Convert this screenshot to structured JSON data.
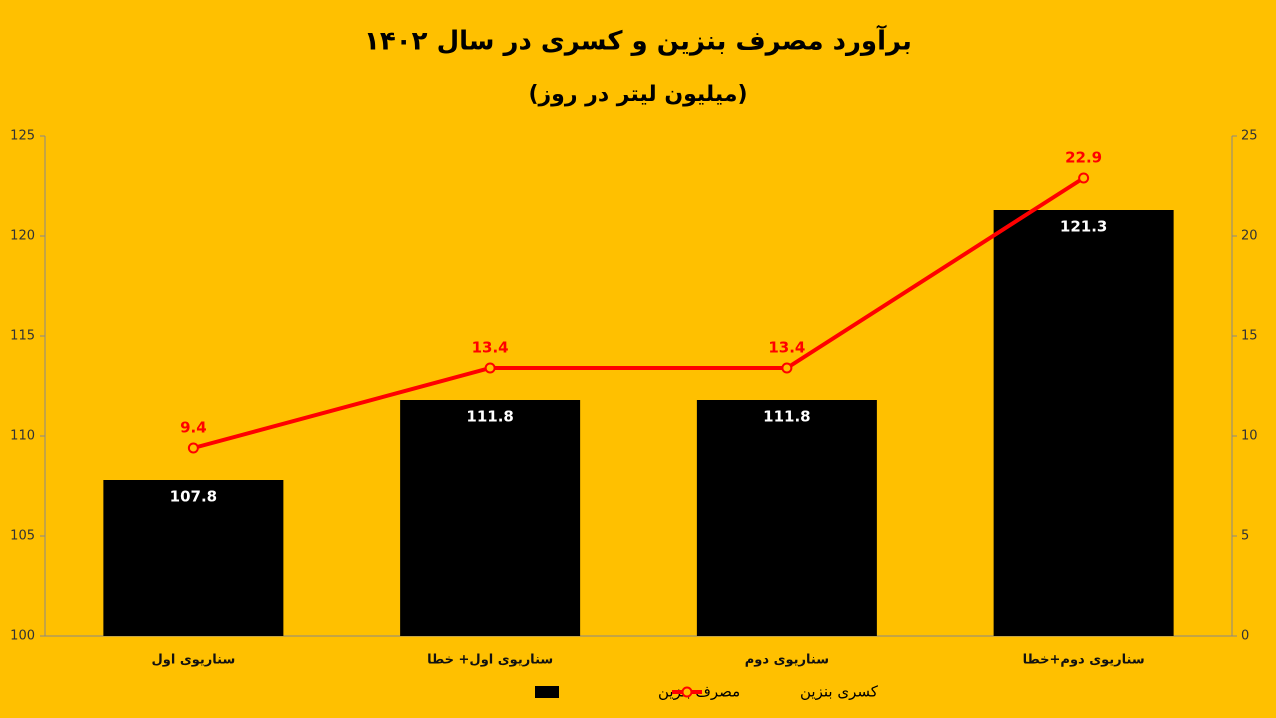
{
  "chart_data": {
    "type": "bar_line",
    "title": "برآورد مصرف بنزین و کسری در سال ۱۴۰۲",
    "subtitle": "(میلیون لیتر در روز)",
    "categories": [
      "سناریوی اول",
      "سناریوی اول+ خطا",
      "سناریوی دوم",
      "سناریوی دوم+خطا"
    ],
    "series": [
      {
        "name": "مصرف بنزین",
        "type": "bar",
        "color": "#000000",
        "values": [
          107.8,
          111.8,
          111.8,
          121.3
        ],
        "axis": "y"
      },
      {
        "name": "کسری بنزین",
        "type": "line",
        "color": "#ff0000",
        "values": [
          9.4,
          13.4,
          13.4,
          22.9
        ],
        "axis": "y2"
      }
    ],
    "ylim": [
      100,
      125
    ],
    "yticks": [
      100,
      105,
      110,
      115,
      120,
      125
    ],
    "y2lim": [
      0,
      25
    ],
    "y2ticks": [
      0,
      5,
      10,
      15,
      20,
      25
    ],
    "background": "#ffc000",
    "legend": "bottom"
  }
}
